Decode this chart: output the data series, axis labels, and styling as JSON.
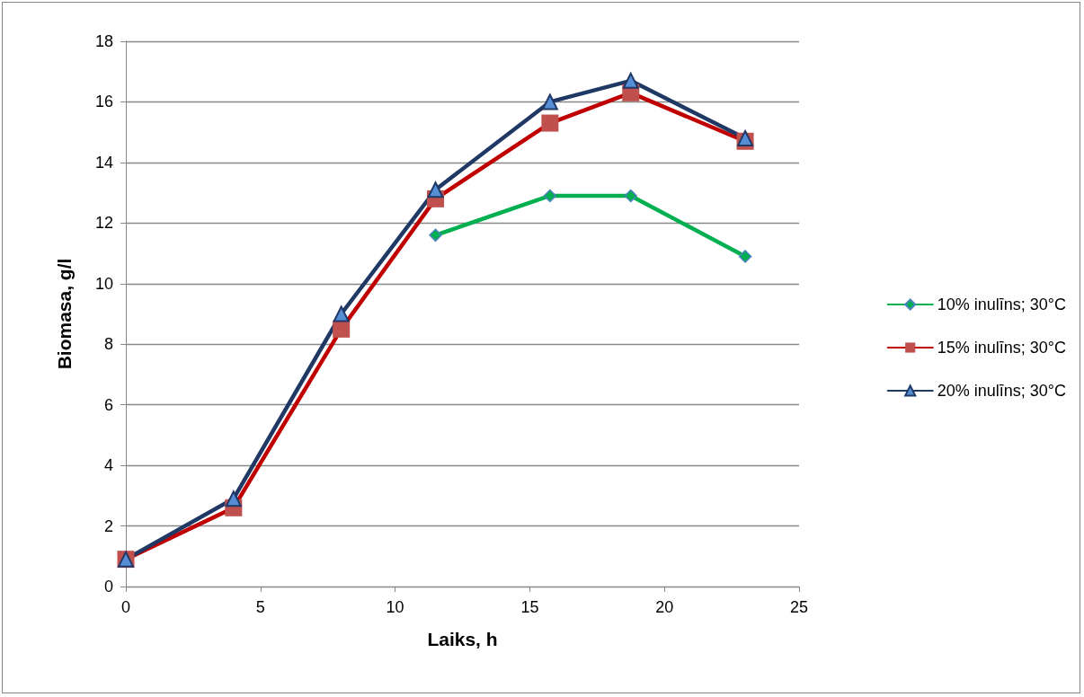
{
  "chart_data": {
    "type": "line",
    "xlabel": "Laiks, h",
    "ylabel": "Biomasa, g/l",
    "x": [
      0,
      4,
      8,
      11.5,
      15.75,
      18.75,
      23
    ],
    "series": [
      {
        "name": "10% inulīns; 30°C",
        "color": "#00b050",
        "marker": "diamond",
        "values": [
          null,
          null,
          null,
          11.6,
          12.9,
          12.9,
          10.9
        ]
      },
      {
        "name": "15% inulīns; 30°C",
        "color": "#c00000",
        "marker": "square",
        "values": [
          0.9,
          2.6,
          8.5,
          12.8,
          15.3,
          16.3,
          14.7
        ]
      },
      {
        "name": "20% inulīns; 30°C",
        "color": "#1f3864",
        "marker": "triangle",
        "values": [
          0.9,
          2.9,
          9.0,
          13.1,
          16.0,
          16.7,
          14.8
        ]
      }
    ],
    "xlim": [
      0,
      25
    ],
    "xticks": [
      0,
      5,
      10,
      15,
      20,
      25
    ],
    "ylim": [
      0,
      18
    ],
    "yticks": [
      0,
      2,
      4,
      6,
      8,
      10,
      12,
      14,
      16,
      18
    ],
    "grid": "y",
    "legend": "right",
    "line_style": "solid"
  }
}
